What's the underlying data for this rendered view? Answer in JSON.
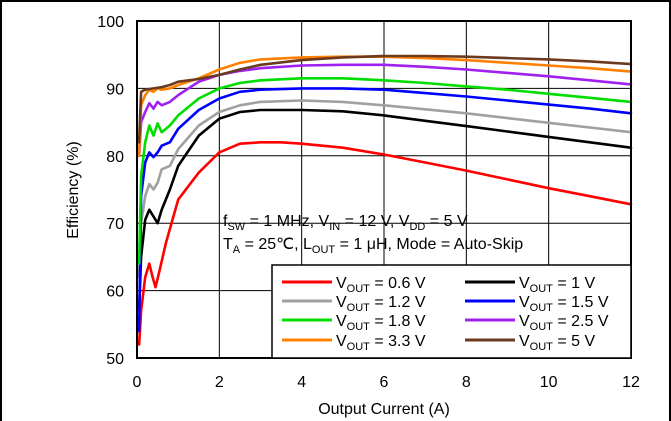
{
  "chart_data": {
    "type": "line",
    "xlabel": "Output Current (A)",
    "ylabel": "Efficiency (%)",
    "xlim": [
      0,
      12
    ],
    "ylim": [
      50,
      100
    ],
    "xticks": [
      "0",
      "2",
      "4",
      "6",
      "8",
      "10",
      "12"
    ],
    "yticks": [
      "50",
      "60",
      "70",
      "80",
      "90",
      "100"
    ],
    "grid": true,
    "annotations": {
      "line1": {
        "f": "f",
        "sw": "SW",
        "mid1": " = 1 MHz, V",
        "in": "IN",
        "mid2": " = 12 V, V",
        "dd": "DD",
        "tail": " = 5 V"
      },
      "line2": {
        "t": "T",
        "a": "A",
        "mid1": " = 25℃, L",
        "out": "OUT",
        "tail": " = 1 μH, Mode = Auto-Skip"
      }
    },
    "legend": {
      "placement": "bottom-right",
      "v": "V",
      "sub": "OUT"
    },
    "series": [
      {
        "name": "V_OUT = 0.6 V",
        "label_tail": " = 0.6 V",
        "color": "#ff0000",
        "points": [
          [
            0.05,
            52
          ],
          [
            0.1,
            57
          ],
          [
            0.2,
            62
          ],
          [
            0.3,
            64
          ],
          [
            0.38,
            62
          ],
          [
            0.45,
            60.5
          ],
          [
            0.55,
            63
          ],
          [
            0.7,
            67
          ],
          [
            1,
            73.5
          ],
          [
            1.5,
            77.5
          ],
          [
            2,
            80.5
          ],
          [
            2.5,
            81.8
          ],
          [
            3,
            82
          ],
          [
            3.5,
            82
          ],
          [
            4,
            81.8
          ],
          [
            5,
            81.2
          ],
          [
            6,
            80.2
          ],
          [
            7,
            79
          ],
          [
            8,
            77.8
          ],
          [
            9,
            76.5
          ],
          [
            10,
            75.2
          ],
          [
            11,
            74
          ],
          [
            12,
            72.8
          ]
        ]
      },
      {
        "name": "V_OUT = 1 V",
        "label_tail": " = 1 V",
        "color": "#000000",
        "points": [
          [
            0.05,
            57
          ],
          [
            0.1,
            65
          ],
          [
            0.2,
            70.5
          ],
          [
            0.3,
            72
          ],
          [
            0.4,
            71
          ],
          [
            0.5,
            70
          ],
          [
            0.6,
            72
          ],
          [
            0.8,
            75
          ],
          [
            1,
            78.5
          ],
          [
            1.5,
            83
          ],
          [
            2,
            85.5
          ],
          [
            2.5,
            86.5
          ],
          [
            3,
            86.8
          ],
          [
            4,
            86.8
          ],
          [
            5,
            86.6
          ],
          [
            6,
            86
          ],
          [
            7,
            85.2
          ],
          [
            8,
            84.4
          ],
          [
            9,
            83.6
          ],
          [
            10,
            82.8
          ],
          [
            11,
            82
          ],
          [
            12,
            81.2
          ]
        ]
      },
      {
        "name": "V_OUT = 1.2 V",
        "label_tail": " = 1.2 V",
        "color": "#a0a0a0",
        "points": [
          [
            0.05,
            62
          ],
          [
            0.1,
            70
          ],
          [
            0.2,
            74
          ],
          [
            0.3,
            75.8
          ],
          [
            0.4,
            75
          ],
          [
            0.5,
            76
          ],
          [
            0.6,
            78
          ],
          [
            0.8,
            78.5
          ],
          [
            1,
            81
          ],
          [
            1.5,
            84.5
          ],
          [
            2,
            86.5
          ],
          [
            2.5,
            87.5
          ],
          [
            3,
            88
          ],
          [
            4,
            88.2
          ],
          [
            5,
            88
          ],
          [
            6,
            87.5
          ],
          [
            7,
            86.9
          ],
          [
            8,
            86.3
          ],
          [
            9,
            85.6
          ],
          [
            10,
            84.9
          ],
          [
            11,
            84.2
          ],
          [
            12,
            83.5
          ]
        ]
      },
      {
        "name": "V_OUT = 1.5 V",
        "label_tail": " = 1.5 V",
        "color": "#0000ff",
        "points": [
          [
            0.05,
            54
          ],
          [
            0.1,
            74
          ],
          [
            0.2,
            79
          ],
          [
            0.3,
            80.5
          ],
          [
            0.4,
            79.8
          ],
          [
            0.5,
            80.5
          ],
          [
            0.6,
            81.5
          ],
          [
            0.8,
            82
          ],
          [
            1,
            84
          ],
          [
            1.5,
            86.8
          ],
          [
            2,
            88.5
          ],
          [
            2.5,
            89.5
          ],
          [
            3,
            89.8
          ],
          [
            4,
            90
          ],
          [
            5,
            90
          ],
          [
            6,
            89.8
          ],
          [
            7,
            89.3
          ],
          [
            8,
            88.8
          ],
          [
            9,
            88.2
          ],
          [
            10,
            87.6
          ],
          [
            11,
            87
          ],
          [
            12,
            86.3
          ]
        ]
      },
      {
        "name": "V_OUT = 1.8 V",
        "label_tail": " = 1.8 V",
        "color": "#00dd00",
        "points": [
          [
            0.05,
            64
          ],
          [
            0.1,
            77
          ],
          [
            0.2,
            82
          ],
          [
            0.3,
            84.5
          ],
          [
            0.4,
            83
          ],
          [
            0.5,
            84.8
          ],
          [
            0.6,
            83.5
          ],
          [
            0.8,
            84.5
          ],
          [
            1,
            86
          ],
          [
            1.5,
            88.5
          ],
          [
            2,
            90
          ],
          [
            2.5,
            90.8
          ],
          [
            3,
            91.2
          ],
          [
            4,
            91.5
          ],
          [
            5,
            91.5
          ],
          [
            6,
            91.2
          ],
          [
            7,
            90.8
          ],
          [
            8,
            90.3
          ],
          [
            9,
            89.8
          ],
          [
            10,
            89.2
          ],
          [
            11,
            88.6
          ],
          [
            12,
            88
          ]
        ]
      },
      {
        "name": "V_OUT = 2.5 V",
        "label_tail": " = 2.5 V",
        "color": "#a020f0",
        "points": [
          [
            0.05,
            80
          ],
          [
            0.1,
            85
          ],
          [
            0.2,
            86.5
          ],
          [
            0.3,
            87.8
          ],
          [
            0.4,
            87
          ],
          [
            0.5,
            88
          ],
          [
            0.6,
            87.5
          ],
          [
            0.8,
            88
          ],
          [
            1,
            89
          ],
          [
            1.5,
            91
          ],
          [
            2,
            92
          ],
          [
            2.5,
            92.6
          ],
          [
            3,
            93
          ],
          [
            4,
            93.4
          ],
          [
            5,
            93.5
          ],
          [
            6,
            93.5
          ],
          [
            7,
            93.2
          ],
          [
            8,
            92.8
          ],
          [
            9,
            92.3
          ],
          [
            10,
            91.8
          ],
          [
            11,
            91.2
          ],
          [
            12,
            90.6
          ]
        ]
      },
      {
        "name": "V_OUT = 3.3 V",
        "label_tail": " = 3.3 V",
        "color": "#ff8000",
        "points": [
          [
            0.05,
            80
          ],
          [
            0.1,
            87.5
          ],
          [
            0.2,
            89
          ],
          [
            0.3,
            89.8
          ],
          [
            0.4,
            89.5
          ],
          [
            0.5,
            90
          ],
          [
            0.6,
            89.8
          ],
          [
            0.8,
            90
          ],
          [
            1,
            90.5
          ],
          [
            1.5,
            91.5
          ],
          [
            2,
            92.8
          ],
          [
            2.5,
            93.8
          ],
          [
            3,
            94.3
          ],
          [
            4,
            94.6
          ],
          [
            5,
            94.7
          ],
          [
            6,
            94.7
          ],
          [
            7,
            94.5
          ],
          [
            8,
            94.2
          ],
          [
            9,
            93.8
          ],
          [
            10,
            93.4
          ],
          [
            11,
            93
          ],
          [
            12,
            92.5
          ]
        ]
      },
      {
        "name": "V_OUT = 5 V",
        "label_tail": " = 5 V",
        "color": "#6b3a1f",
        "points": [
          [
            0.05,
            82
          ],
          [
            0.1,
            89.5
          ],
          [
            0.2,
            89.8
          ],
          [
            0.4,
            90
          ],
          [
            0.6,
            90.2
          ],
          [
            0.8,
            90.5
          ],
          [
            1,
            91
          ],
          [
            1.5,
            91.4
          ],
          [
            2,
            92
          ],
          [
            2.5,
            92.8
          ],
          [
            3,
            93.5
          ],
          [
            4,
            94.2
          ],
          [
            5,
            94.6
          ],
          [
            6,
            94.8
          ],
          [
            7,
            94.8
          ],
          [
            8,
            94.7
          ],
          [
            9,
            94.5
          ],
          [
            10,
            94.3
          ],
          [
            11,
            94
          ],
          [
            12,
            93.6
          ]
        ]
      }
    ]
  }
}
